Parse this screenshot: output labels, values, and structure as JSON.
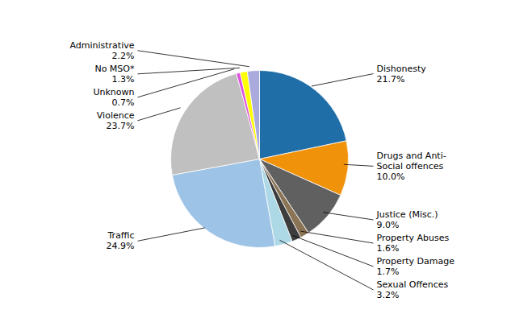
{
  "chart_data": {
    "type": "pie",
    "categories": [
      "Dishonesty",
      "Drugs and Anti-\nSocial offences",
      "Justice (Misc.)",
      "Property Abuses",
      "Property Damage",
      "Sexual Offences",
      "Traffic",
      "Violence",
      "Unknown",
      "No MSO*",
      "Administrative"
    ],
    "values": [
      21.7,
      10.0,
      9.0,
      1.6,
      1.7,
      3.2,
      24.9,
      23.7,
      0.7,
      1.3,
      2.2
    ],
    "value_labels": [
      "21.7%",
      "10.0%",
      "9.0%",
      "1.6%",
      "1.7%",
      "3.2%",
      "24.9%",
      "23.7%",
      "0.7%",
      "1.3%",
      "2.2%"
    ],
    "colors": [
      "#1F6EA8",
      "#F0920A",
      "#606060",
      "#8B7355",
      "#3D3D3D",
      "#ADD8E6",
      "#9DC3E6",
      "#C0C0C0",
      "#DD55DD",
      "#FFFF00",
      "#AAAADD"
    ],
    "data_labels": true
  }
}
